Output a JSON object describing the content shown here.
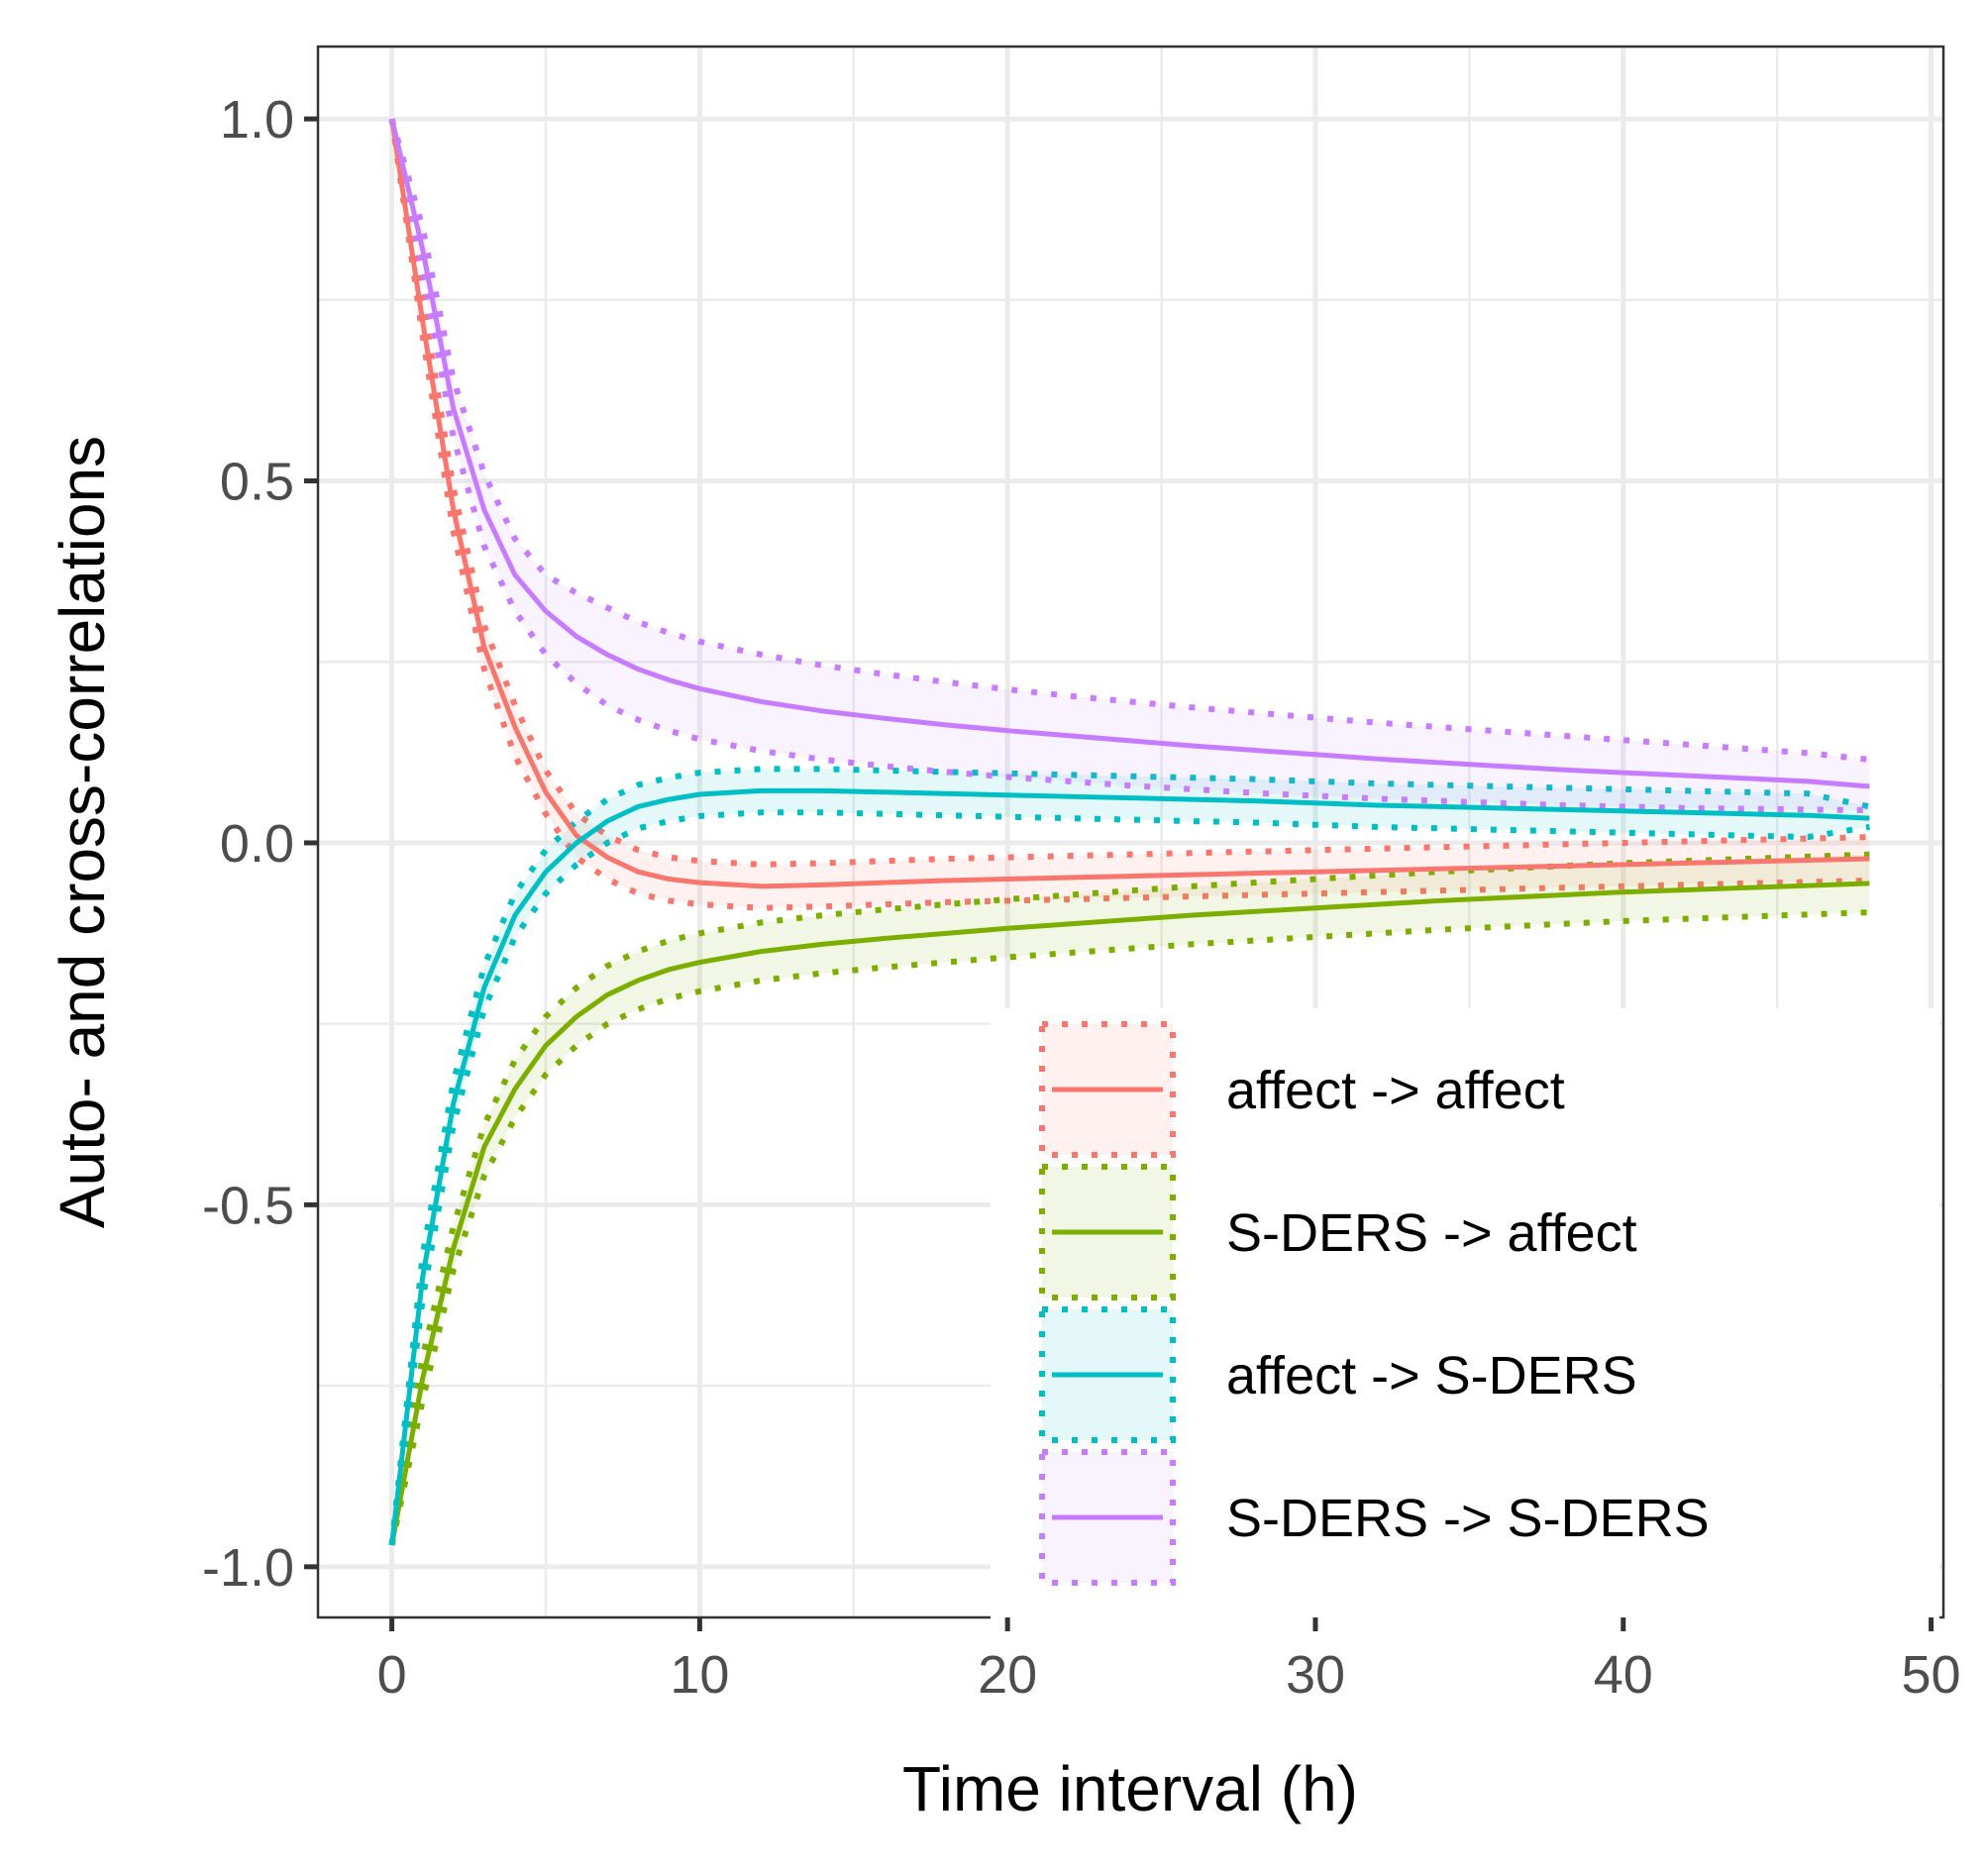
{
  "chart_data": {
    "type": "line",
    "title": "",
    "xlabel": "Time interval (h)",
    "ylabel": "Auto- and cross-correlations",
    "xlim": [
      -2.4,
      50.4
    ],
    "ylim": [
      -1.07,
      1.1
    ],
    "xticks": [
      0,
      10,
      20,
      30,
      40,
      50
    ],
    "xtick_labels": [
      "0",
      "10",
      "20",
      "30",
      "40",
      "50"
    ],
    "yticks": [
      -1.0,
      -0.5,
      0.0,
      0.5,
      1.0
    ],
    "ytick_labels": [
      "-1.0",
      "-0.5",
      "0.0",
      "0.5",
      "1.0"
    ],
    "grid": true,
    "legend_position": "bottom-right inside",
    "x": [
      0,
      1,
      2,
      3,
      4,
      5,
      6,
      7,
      8,
      9,
      10,
      12,
      14,
      16,
      18,
      20,
      22,
      24,
      26,
      28,
      30,
      32,
      34,
      36,
      38,
      40,
      42,
      44,
      46,
      48
    ],
    "series": [
      {
        "name": "affect -> affect",
        "color": "#F8766D",
        "values": [
          1.0,
          0.72,
          0.46,
          0.27,
          0.16,
          0.07,
          0.01,
          -0.02,
          -0.04,
          -0.05,
          -0.055,
          -0.06,
          -0.058,
          -0.055,
          -0.052,
          -0.05,
          -0.048,
          -0.046,
          -0.044,
          -0.042,
          -0.04,
          -0.038,
          -0.036,
          -0.034,
          -0.032,
          -0.03,
          -0.028,
          -0.026,
          -0.024,
          -0.022
        ],
        "lower": [
          1.0,
          0.7,
          0.43,
          0.24,
          0.12,
          0.04,
          -0.02,
          -0.05,
          -0.07,
          -0.08,
          -0.085,
          -0.09,
          -0.088,
          -0.085,
          -0.082,
          -0.08,
          -0.078,
          -0.076,
          -0.074,
          -0.072,
          -0.07,
          -0.068,
          -0.066,
          -0.064,
          -0.062,
          -0.06,
          -0.058,
          -0.056,
          -0.054,
          -0.052
        ],
        "upper": [
          1.0,
          0.75,
          0.49,
          0.3,
          0.19,
          0.1,
          0.04,
          0.01,
          -0.01,
          -0.02,
          -0.025,
          -0.03,
          -0.028,
          -0.025,
          -0.022,
          -0.02,
          -0.018,
          -0.016,
          -0.014,
          -0.012,
          -0.01,
          -0.008,
          -0.006,
          -0.004,
          -0.002,
          0.0,
          0.002,
          0.004,
          0.006,
          0.008
        ]
      },
      {
        "name": "S-DERS -> affect",
        "color": "#7CAE00",
        "values": [
          -0.97,
          -0.74,
          -0.56,
          -0.42,
          -0.34,
          -0.28,
          -0.24,
          -0.21,
          -0.19,
          -0.175,
          -0.165,
          -0.15,
          -0.14,
          -0.132,
          -0.125,
          -0.118,
          -0.112,
          -0.106,
          -0.1,
          -0.095,
          -0.09,
          -0.085,
          -0.08,
          -0.076,
          -0.072,
          -0.068,
          -0.065,
          -0.062,
          -0.059,
          -0.056
        ],
        "lower": [
          -0.97,
          -0.77,
          -0.59,
          -0.46,
          -0.38,
          -0.32,
          -0.28,
          -0.25,
          -0.23,
          -0.215,
          -0.205,
          -0.19,
          -0.18,
          -0.172,
          -0.165,
          -0.158,
          -0.152,
          -0.146,
          -0.14,
          -0.135,
          -0.13,
          -0.125,
          -0.12,
          -0.116,
          -0.112,
          -0.108,
          -0.105,
          -0.102,
          -0.099,
          -0.096
        ],
        "upper": [
          -0.97,
          -0.71,
          -0.53,
          -0.39,
          -0.3,
          -0.24,
          -0.2,
          -0.17,
          -0.15,
          -0.135,
          -0.125,
          -0.11,
          -0.1,
          -0.092,
          -0.085,
          -0.078,
          -0.072,
          -0.066,
          -0.06,
          -0.055,
          -0.05,
          -0.045,
          -0.04,
          -0.036,
          -0.032,
          -0.028,
          -0.025,
          -0.022,
          -0.019,
          -0.016
        ]
      },
      {
        "name": "affect -> S-DERS",
        "color": "#00BFC4",
        "values": [
          -0.97,
          -0.6,
          -0.36,
          -0.2,
          -0.1,
          -0.04,
          0.0,
          0.03,
          0.05,
          0.06,
          0.067,
          0.072,
          0.072,
          0.07,
          0.068,
          0.066,
          0.064,
          0.062,
          0.06,
          0.058,
          0.055,
          0.052,
          0.05,
          0.048,
          0.046,
          0.044,
          0.042,
          0.04,
          0.038,
          0.034
        ],
        "lower": [
          -0.97,
          -0.63,
          -0.39,
          -0.23,
          -0.13,
          -0.07,
          -0.03,
          0.0,
          0.02,
          0.03,
          0.037,
          0.042,
          0.042,
          0.04,
          0.038,
          0.036,
          0.034,
          0.032,
          0.03,
          0.028,
          0.025,
          0.022,
          0.02,
          0.018,
          0.016,
          0.014,
          0.012,
          0.01,
          0.008,
          0.022
        ],
        "upper": [
          -0.97,
          -0.57,
          -0.33,
          -0.17,
          -0.07,
          -0.01,
          0.03,
          0.06,
          0.08,
          0.09,
          0.097,
          0.102,
          0.102,
          0.1,
          0.098,
          0.096,
          0.094,
          0.092,
          0.09,
          0.088,
          0.085,
          0.082,
          0.08,
          0.078,
          0.076,
          0.074,
          0.072,
          0.07,
          0.068,
          0.05
        ]
      },
      {
        "name": "S-DERS -> S-DERS",
        "color": "#C77CFF",
        "values": [
          1.0,
          0.82,
          0.6,
          0.46,
          0.37,
          0.32,
          0.285,
          0.26,
          0.24,
          0.225,
          0.213,
          0.195,
          0.182,
          0.172,
          0.163,
          0.155,
          0.148,
          0.141,
          0.134,
          0.128,
          0.122,
          0.116,
          0.111,
          0.106,
          0.101,
          0.097,
          0.093,
          0.089,
          0.085,
          0.078
        ],
        "lower": [
          1.0,
          0.79,
          0.56,
          0.41,
          0.32,
          0.26,
          0.22,
          0.19,
          0.17,
          0.155,
          0.143,
          0.127,
          0.115,
          0.106,
          0.098,
          0.091,
          0.085,
          0.079,
          0.074,
          0.069,
          0.065,
          0.061,
          0.058,
          0.055,
          0.052,
          0.05,
          0.048,
          0.047,
          0.046,
          0.045
        ],
        "upper": [
          1.0,
          0.85,
          0.64,
          0.51,
          0.42,
          0.37,
          0.345,
          0.325,
          0.305,
          0.29,
          0.278,
          0.26,
          0.245,
          0.233,
          0.222,
          0.212,
          0.203,
          0.195,
          0.187,
          0.18,
          0.173,
          0.166,
          0.16,
          0.154,
          0.148,
          0.142,
          0.136,
          0.13,
          0.124,
          0.115
        ]
      }
    ]
  }
}
